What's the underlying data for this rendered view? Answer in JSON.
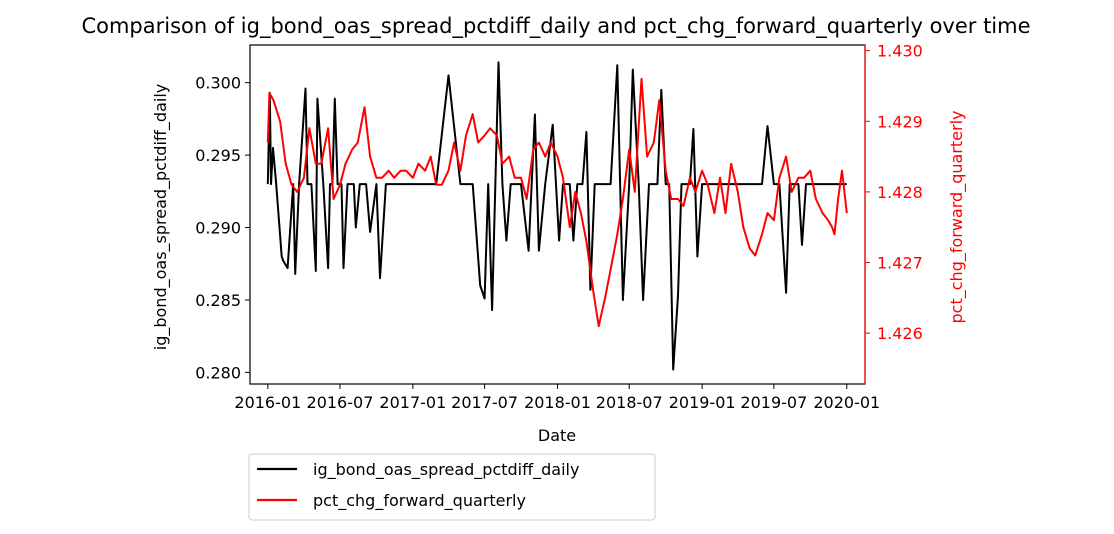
{
  "chart_data": {
    "type": "line",
    "title": "Comparison of ig_bond_oas_spread_pctdiff_daily and pct_chg_forward_quarterly over time",
    "xlabel": "Date",
    "ylabel_left": "ig_bond_oas_spread_pctdiff_daily",
    "ylabel_right": "pct_chg_forward_quarterly",
    "x_ticks": [
      "2016-01",
      "2016-07",
      "2017-01",
      "2017-07",
      "2018-01",
      "2018-07",
      "2019-01",
      "2019-07",
      "2020-01"
    ],
    "x_range": [
      "2015-11-17",
      "2020-02-16"
    ],
    "ylim_left": [
      0.2792,
      0.3026
    ],
    "yticks_left": [
      "0.280",
      "0.285",
      "0.290",
      "0.295",
      "0.300"
    ],
    "ylim_right": [
      1.42528,
      1.43008
    ],
    "yticks_right": [
      "1.426",
      "1.427",
      "1.428",
      "1.429",
      "1.430"
    ],
    "grid": false,
    "legend_position": "below-left",
    "colors": {
      "left_series": "#000000",
      "right_series": "#ff0000"
    },
    "series": [
      {
        "name": "ig_bond_oas_spread_pctdiff_daily",
        "axis": "left",
        "color": "#000000",
        "x": [
          "2016-01-01",
          "2016-01-06",
          "2016-01-09",
          "2016-01-14",
          "2016-01-22",
          "2016-02-05",
          "2016-02-09",
          "2016-02-20",
          "2016-03-05",
          "2016-03-10",
          "2016-03-20",
          "2016-04-05",
          "2016-04-10",
          "2016-04-20",
          "2016-05-01",
          "2016-05-05",
          "2016-05-20",
          "2016-06-01",
          "2016-06-06",
          "2016-06-12",
          "2016-06-18",
          "2016-06-25",
          "2016-07-05",
          "2016-07-10",
          "2016-07-20",
          "2016-08-05",
          "2016-08-10",
          "2016-08-20",
          "2016-09-01",
          "2016-09-05",
          "2016-09-15",
          "2016-10-01",
          "2016-10-10",
          "2016-10-25",
          "2016-11-10",
          "2016-11-20",
          "2016-12-01",
          "2016-12-15",
          "2017-01-01",
          "2017-01-10",
          "2017-01-20",
          "2017-02-05",
          "2017-03-01",
          "2017-04-01",
          "2017-05-01",
          "2017-06-01",
          "2017-06-20",
          "2017-07-01",
          "2017-07-10",
          "2017-07-20",
          "2017-08-05",
          "2017-08-15",
          "2017-08-25",
          "2017-09-05",
          "2017-09-15",
          "2017-10-01",
          "2017-10-20",
          "2017-11-05",
          "2017-11-15",
          "2017-12-01",
          "2017-12-20",
          "2018-01-05",
          "2018-01-15",
          "2018-02-01",
          "2018-02-10",
          "2018-02-20",
          "2018-03-05",
          "2018-03-15",
          "2018-03-25",
          "2018-04-05",
          "2018-04-20",
          "2018-05-01",
          "2018-05-15",
          "2018-06-01",
          "2018-06-15",
          "2018-07-01",
          "2018-07-10",
          "2018-07-25",
          "2018-08-05",
          "2018-08-20",
          "2018-09-01",
          "2018-09-10",
          "2018-09-20",
          "2018-10-01",
          "2018-10-10",
          "2018-10-20",
          "2018-11-01",
          "2018-11-10",
          "2018-11-20",
          "2018-12-01",
          "2018-12-10",
          "2018-12-20",
          "2019-01-01",
          "2019-01-07",
          "2019-01-15",
          "2019-01-25",
          "2019-02-05",
          "2019-02-15",
          "2019-03-01",
          "2019-03-15",
          "2019-04-01",
          "2019-04-15",
          "2019-05-01",
          "2019-05-15",
          "2019-06-01",
          "2019-06-15",
          "2019-07-01",
          "2019-07-15",
          "2019-08-01",
          "2019-08-10",
          "2019-08-20",
          "2019-09-01",
          "2019-09-10",
          "2019-09-20",
          "2019-10-01",
          "2019-10-10",
          "2019-10-20",
          "2019-11-01",
          "2019-11-10",
          "2019-11-20",
          "2019-12-01",
          "2019-12-10",
          "2019-12-20",
          "2020-01-01"
        ],
        "values": [
          0.293,
          0.2993,
          0.293,
          0.2955,
          0.293,
          0.288,
          0.2877,
          0.2872,
          0.293,
          0.2868,
          0.293,
          0.2996,
          0.293,
          0.293,
          0.287,
          0.2989,
          0.293,
          0.2872,
          0.293,
          0.293,
          0.2989,
          0.293,
          0.293,
          0.2872,
          0.293,
          0.293,
          0.29,
          0.293,
          0.293,
          0.293,
          0.2897,
          0.293,
          0.2865,
          0.293,
          0.293,
          0.293,
          0.293,
          0.293,
          0.293,
          0.293,
          0.293,
          0.293,
          0.293,
          0.3005,
          0.293,
          0.293,
          0.286,
          0.2851,
          0.293,
          0.2843,
          0.3014,
          0.293,
          0.2891,
          0.293,
          0.293,
          0.293,
          0.2884,
          0.2978,
          0.2884,
          0.293,
          0.2971,
          0.2891,
          0.293,
          0.293,
          0.2891,
          0.293,
          0.293,
          0.2966,
          0.2857,
          0.293,
          0.293,
          0.293,
          0.293,
          0.3012,
          0.285,
          0.293,
          0.3009,
          0.293,
          0.285,
          0.293,
          0.293,
          0.293,
          0.2995,
          0.293,
          0.293,
          0.2802,
          0.2853,
          0.293,
          0.293,
          0.293,
          0.2968,
          0.288,
          0.293,
          0.293,
          0.293,
          0.293,
          0.293,
          0.293,
          0.293,
          0.293,
          0.293,
          0.293,
          0.293,
          0.293,
          0.293,
          0.297,
          0.293,
          0.293,
          0.2855,
          0.293,
          0.293,
          0.293,
          0.2888,
          0.293,
          0.293,
          0.293,
          0.293,
          0.293,
          0.293,
          0.293,
          0.293,
          0.293,
          0.293,
          0.293
        ]
      },
      {
        "name": "pct_chg_forward_quarterly",
        "axis": "right",
        "color": "#ff0000",
        "x": [
          "2016-01-01",
          "2016-01-05",
          "2016-01-15",
          "2016-02-01",
          "2016-02-15",
          "2016-03-01",
          "2016-03-15",
          "2016-04-01",
          "2016-04-15",
          "2016-05-01",
          "2016-05-15",
          "2016-06-01",
          "2016-06-15",
          "2016-07-01",
          "2016-07-15",
          "2016-08-01",
          "2016-08-15",
          "2016-09-01",
          "2016-09-15",
          "2016-10-01",
          "2016-10-15",
          "2016-11-01",
          "2016-11-15",
          "2016-12-01",
          "2016-12-15",
          "2017-01-01",
          "2017-01-15",
          "2017-02-01",
          "2017-02-15",
          "2017-03-01",
          "2017-03-15",
          "2017-04-01",
          "2017-04-15",
          "2017-05-01",
          "2017-05-15",
          "2017-06-01",
          "2017-06-15",
          "2017-07-01",
          "2017-07-15",
          "2017-08-01",
          "2017-08-15",
          "2017-09-01",
          "2017-09-15",
          "2017-10-01",
          "2017-10-15",
          "2017-11-01",
          "2017-11-15",
          "2017-12-01",
          "2017-12-15",
          "2018-01-01",
          "2018-01-15",
          "2018-02-01",
          "2018-02-15",
          "2018-03-01",
          "2018-03-15",
          "2018-04-01",
          "2018-04-15",
          "2018-05-01",
          "2018-05-15",
          "2018-06-01",
          "2018-06-15",
          "2018-07-01",
          "2018-07-15",
          "2018-08-01",
          "2018-08-15",
          "2018-09-01",
          "2018-09-15",
          "2018-10-01",
          "2018-10-15",
          "2018-11-01",
          "2018-11-15",
          "2018-12-01",
          "2018-12-15",
          "2019-01-01",
          "2019-01-15",
          "2019-02-01",
          "2019-02-15",
          "2019-03-01",
          "2019-03-15",
          "2019-04-01",
          "2019-04-15",
          "2019-05-01",
          "2019-05-15",
          "2019-06-01",
          "2019-06-15",
          "2019-07-01",
          "2019-07-15",
          "2019-08-01",
          "2019-08-15",
          "2019-09-01",
          "2019-09-15",
          "2019-10-01",
          "2019-10-15",
          "2019-11-01",
          "2019-11-15",
          "2019-11-25",
          "2019-12-01",
          "2019-12-10",
          "2019-12-20",
          "2020-01-01"
        ],
        "values": [
          1.4287,
          1.4294,
          1.4293,
          1.429,
          1.4284,
          1.4281,
          1.428,
          1.4282,
          1.4289,
          1.4284,
          1.4284,
          1.4289,
          1.4279,
          1.4281,
          1.4284,
          1.4286,
          1.4287,
          1.4292,
          1.4285,
          1.4282,
          1.4282,
          1.4283,
          1.4282,
          1.4283,
          1.4283,
          1.4282,
          1.4284,
          1.4283,
          1.4285,
          1.4281,
          1.4281,
          1.4283,
          1.4287,
          1.4283,
          1.4288,
          1.4291,
          1.4287,
          1.4288,
          1.4289,
          1.4288,
          1.4284,
          1.4285,
          1.4282,
          1.4282,
          1.4279,
          1.4286,
          1.4287,
          1.4285,
          1.4287,
          1.4285,
          1.4282,
          1.4275,
          1.428,
          1.4277,
          1.4273,
          1.4266,
          1.4261,
          1.4265,
          1.4269,
          1.4274,
          1.4279,
          1.4286,
          1.428,
          1.4296,
          1.4285,
          1.4287,
          1.4293,
          1.4283,
          1.4279,
          1.4279,
          1.4278,
          1.4282,
          1.428,
          1.4283,
          1.4281,
          1.4277,
          1.4282,
          1.4277,
          1.4284,
          1.428,
          1.4275,
          1.4272,
          1.4271,
          1.4274,
          1.4277,
          1.4276,
          1.4282,
          1.4285,
          1.428,
          1.4282,
          1.4282,
          1.4283,
          1.4279,
          1.4277,
          1.4276,
          1.4275,
          1.4274,
          1.4279,
          1.4283,
          1.4277
        ]
      }
    ]
  }
}
